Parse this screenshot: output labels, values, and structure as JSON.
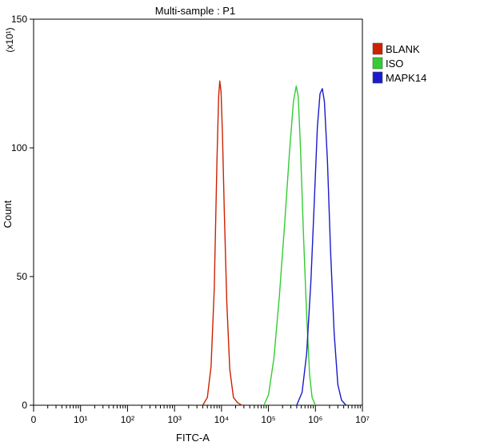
{
  "chart_data": {
    "type": "line",
    "title": "Multi-sample : P1",
    "xlabel": "FITC-A",
    "ylabel": "Count",
    "y_multiplier": "(x10¹)",
    "x_scale": "log",
    "xlim": [
      1,
      10000000
    ],
    "ylim": [
      0,
      150
    ],
    "x_ticks": [
      {
        "label": "0",
        "value": 1
      },
      {
        "label": "10¹",
        "value": 10
      },
      {
        "label": "10²",
        "value": 100
      },
      {
        "label": "10³",
        "value": 1000
      },
      {
        "label": "10⁴",
        "value": 10000
      },
      {
        "label": "10⁵",
        "value": 100000
      },
      {
        "label": "10⁶",
        "value": 1000000
      },
      {
        "label": "10⁷",
        "value": 10000000
      }
    ],
    "y_ticks": [
      0,
      50,
      100,
      150
    ],
    "legend_position": "right",
    "series": [
      {
        "name": "BLANK",
        "color": "#cc2200",
        "x": [
          4000,
          5000,
          6000,
          7000,
          8000,
          8700,
          9200,
          9800,
          10500,
          11500,
          13000,
          15000,
          18000,
          22000,
          27000
        ],
        "y": [
          0,
          3,
          15,
          45,
          95,
          120,
          126,
          122,
          105,
          75,
          40,
          14,
          3,
          1,
          0
        ]
      },
      {
        "name": "ISO",
        "color": "#33cc33",
        "x": [
          80000,
          100000,
          130000,
          170000,
          220000,
          280000,
          340000,
          390000,
          430000,
          480000,
          560000,
          650000,
          750000,
          850000,
          1000000
        ],
        "y": [
          0,
          4,
          18,
          42,
          70,
          98,
          118,
          124,
          120,
          100,
          65,
          35,
          12,
          3,
          0
        ]
      },
      {
        "name": "MAPK14",
        "color": "#1a1acc",
        "x": [
          400000,
          520000,
          650000,
          800000,
          950000,
          1100000,
          1250000,
          1400000,
          1550000,
          1800000,
          2100000,
          2500000,
          3000000,
          3600000,
          4500000
        ],
        "y": [
          0,
          5,
          20,
          48,
          80,
          108,
          121,
          123,
          118,
          95,
          60,
          28,
          8,
          2,
          0
        ]
      }
    ]
  }
}
